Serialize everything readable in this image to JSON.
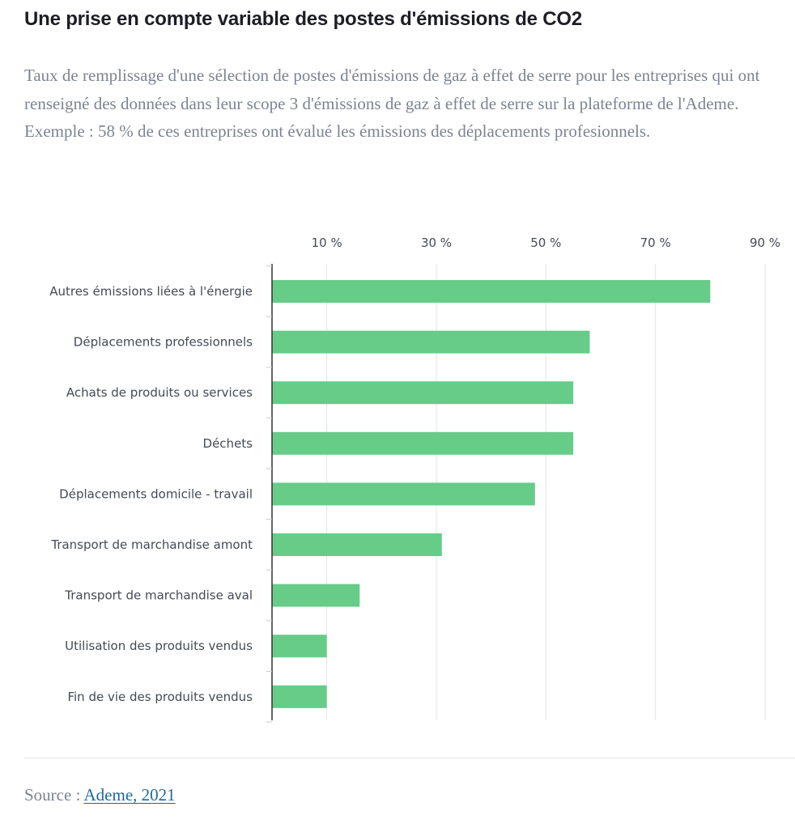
{
  "title": "Une prise en compte variable des postes d'émissions de CO2",
  "subtitle": "Taux de remplissage d'une sélection de postes d'émissions de gaz à effet de serre pour les entreprises qui ont renseigné des données dans leur scope 3 d'émissions de gaz à effet de serre sur la plateforme de l'Ademe. Exemple : 58 % de ces entreprises ont évalué les émissions des déplacements profesionnels.",
  "source": {
    "prefix": "Source : ",
    "link_text": "Ademe, 2021"
  },
  "colors": {
    "bar": "#66cc88",
    "grid": "#e2e5ea",
    "axis": "#333333"
  },
  "chart_data": {
    "type": "bar",
    "orientation": "horizontal",
    "title": "Une prise en compte variable des postes d'émissions de CO2",
    "xlabel": "",
    "ylabel": "",
    "xlim": [
      0,
      90
    ],
    "xticks": [
      10,
      30,
      50,
      70,
      90
    ],
    "tick_labels": [
      "10 %",
      "30 %",
      "50 %",
      "70 %",
      "90 %"
    ],
    "grid": true,
    "categories": [
      "Autres émissions liées à l'énergie",
      "Déplacements professionnels",
      "Achats de produits ou services",
      "Déchets",
      "Déplacements domicile - travail",
      "Transport de marchandise amont",
      "Transport de marchandise aval",
      "Utilisation des produits vendus",
      "Fin de vie des produits vendus"
    ],
    "values": [
      80,
      58,
      55,
      55,
      48,
      31,
      16,
      10,
      10
    ],
    "unit": "%"
  }
}
